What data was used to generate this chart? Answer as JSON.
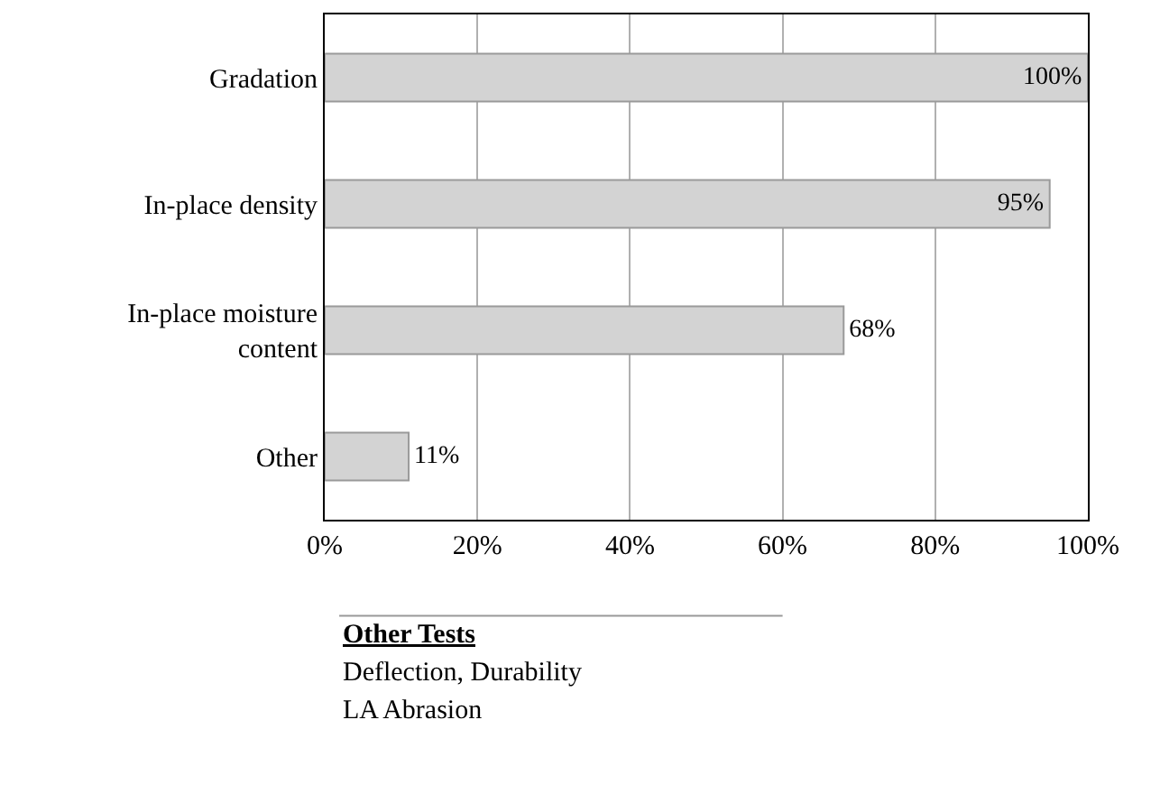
{
  "chart_data": {
    "type": "bar",
    "orientation": "horizontal",
    "categories": [
      "Gradation",
      "In-place density",
      "In-place moisture content",
      "Other"
    ],
    "values": [
      100,
      95,
      68,
      11
    ],
    "value_labels": [
      "100%",
      "95%",
      "68%",
      "11%"
    ],
    "color": "#d3d3d3",
    "xlim": [
      0,
      100
    ],
    "xticks": [
      {
        "value": 0,
        "label": "0%"
      },
      {
        "value": 20,
        "label": "20%"
      },
      {
        "value": 40,
        "label": "40%"
      },
      {
        "value": 60,
        "label": "60%"
      },
      {
        "value": 80,
        "label": "80%"
      },
      {
        "value": 100,
        "label": "100%"
      }
    ],
    "grid": "x",
    "annotations": [
      "Other Tests",
      "Deflection, Durability",
      "LA Abrasion"
    ]
  }
}
